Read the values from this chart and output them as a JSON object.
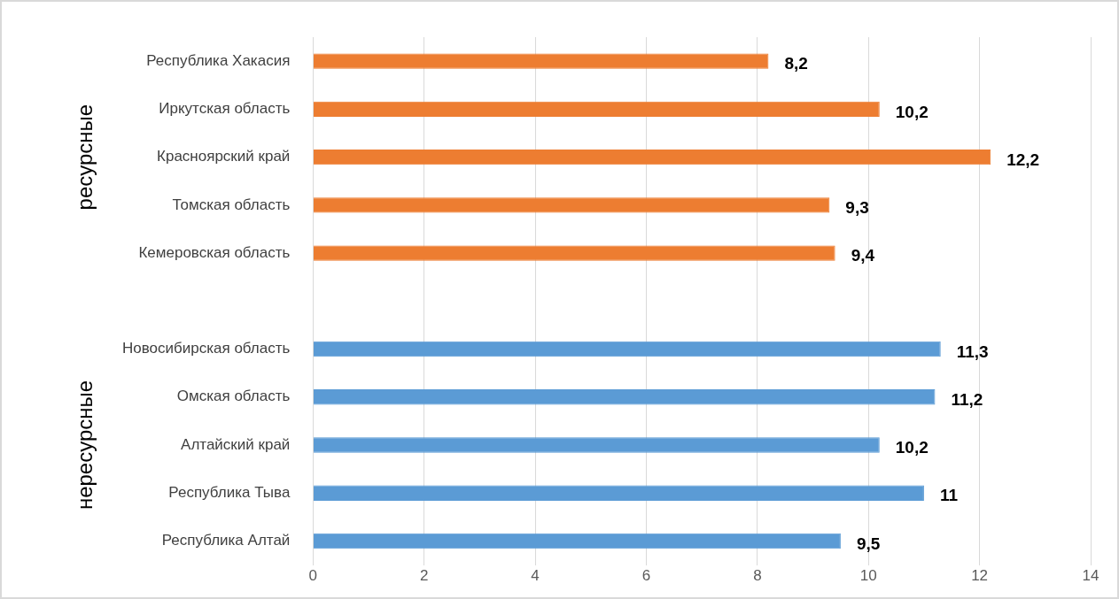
{
  "chart_data": {
    "type": "bar",
    "orientation": "horizontal",
    "categories": [
      "Республика Хакасия",
      "Иркутская область",
      "Красноярский край",
      "Томская область",
      "Кемеровская область",
      null,
      "Новосибирская область",
      "Омская область",
      "Алтайский край",
      "Республика Тыва",
      "Республика Алтай"
    ],
    "series": [
      {
        "color": "#ed7d31",
        "values": [
          8.2,
          10.2,
          12.2,
          9.3,
          9.4,
          null,
          null,
          null,
          null,
          null,
          null
        ],
        "value_labels": [
          "8,2",
          "10,2",
          "12,2",
          "9,3",
          "9,4",
          null,
          null,
          null,
          null,
          null,
          null
        ]
      },
      {
        "color": "#5b9bd5",
        "values": [
          null,
          null,
          null,
          null,
          null,
          null,
          11.3,
          11.2,
          10.2,
          11,
          9.5
        ],
        "value_labels": [
          null,
          null,
          null,
          null,
          null,
          null,
          "11,3",
          "11,2",
          "10,2",
          "11",
          "9,5"
        ]
      }
    ],
    "xlim": [
      0,
      14
    ],
    "xticks": [
      0,
      2,
      4,
      6,
      8,
      10,
      12,
      14
    ],
    "grid": "x",
    "legend": false,
    "annotations": [
      "ресурсные",
      "нересурсные"
    ]
  }
}
